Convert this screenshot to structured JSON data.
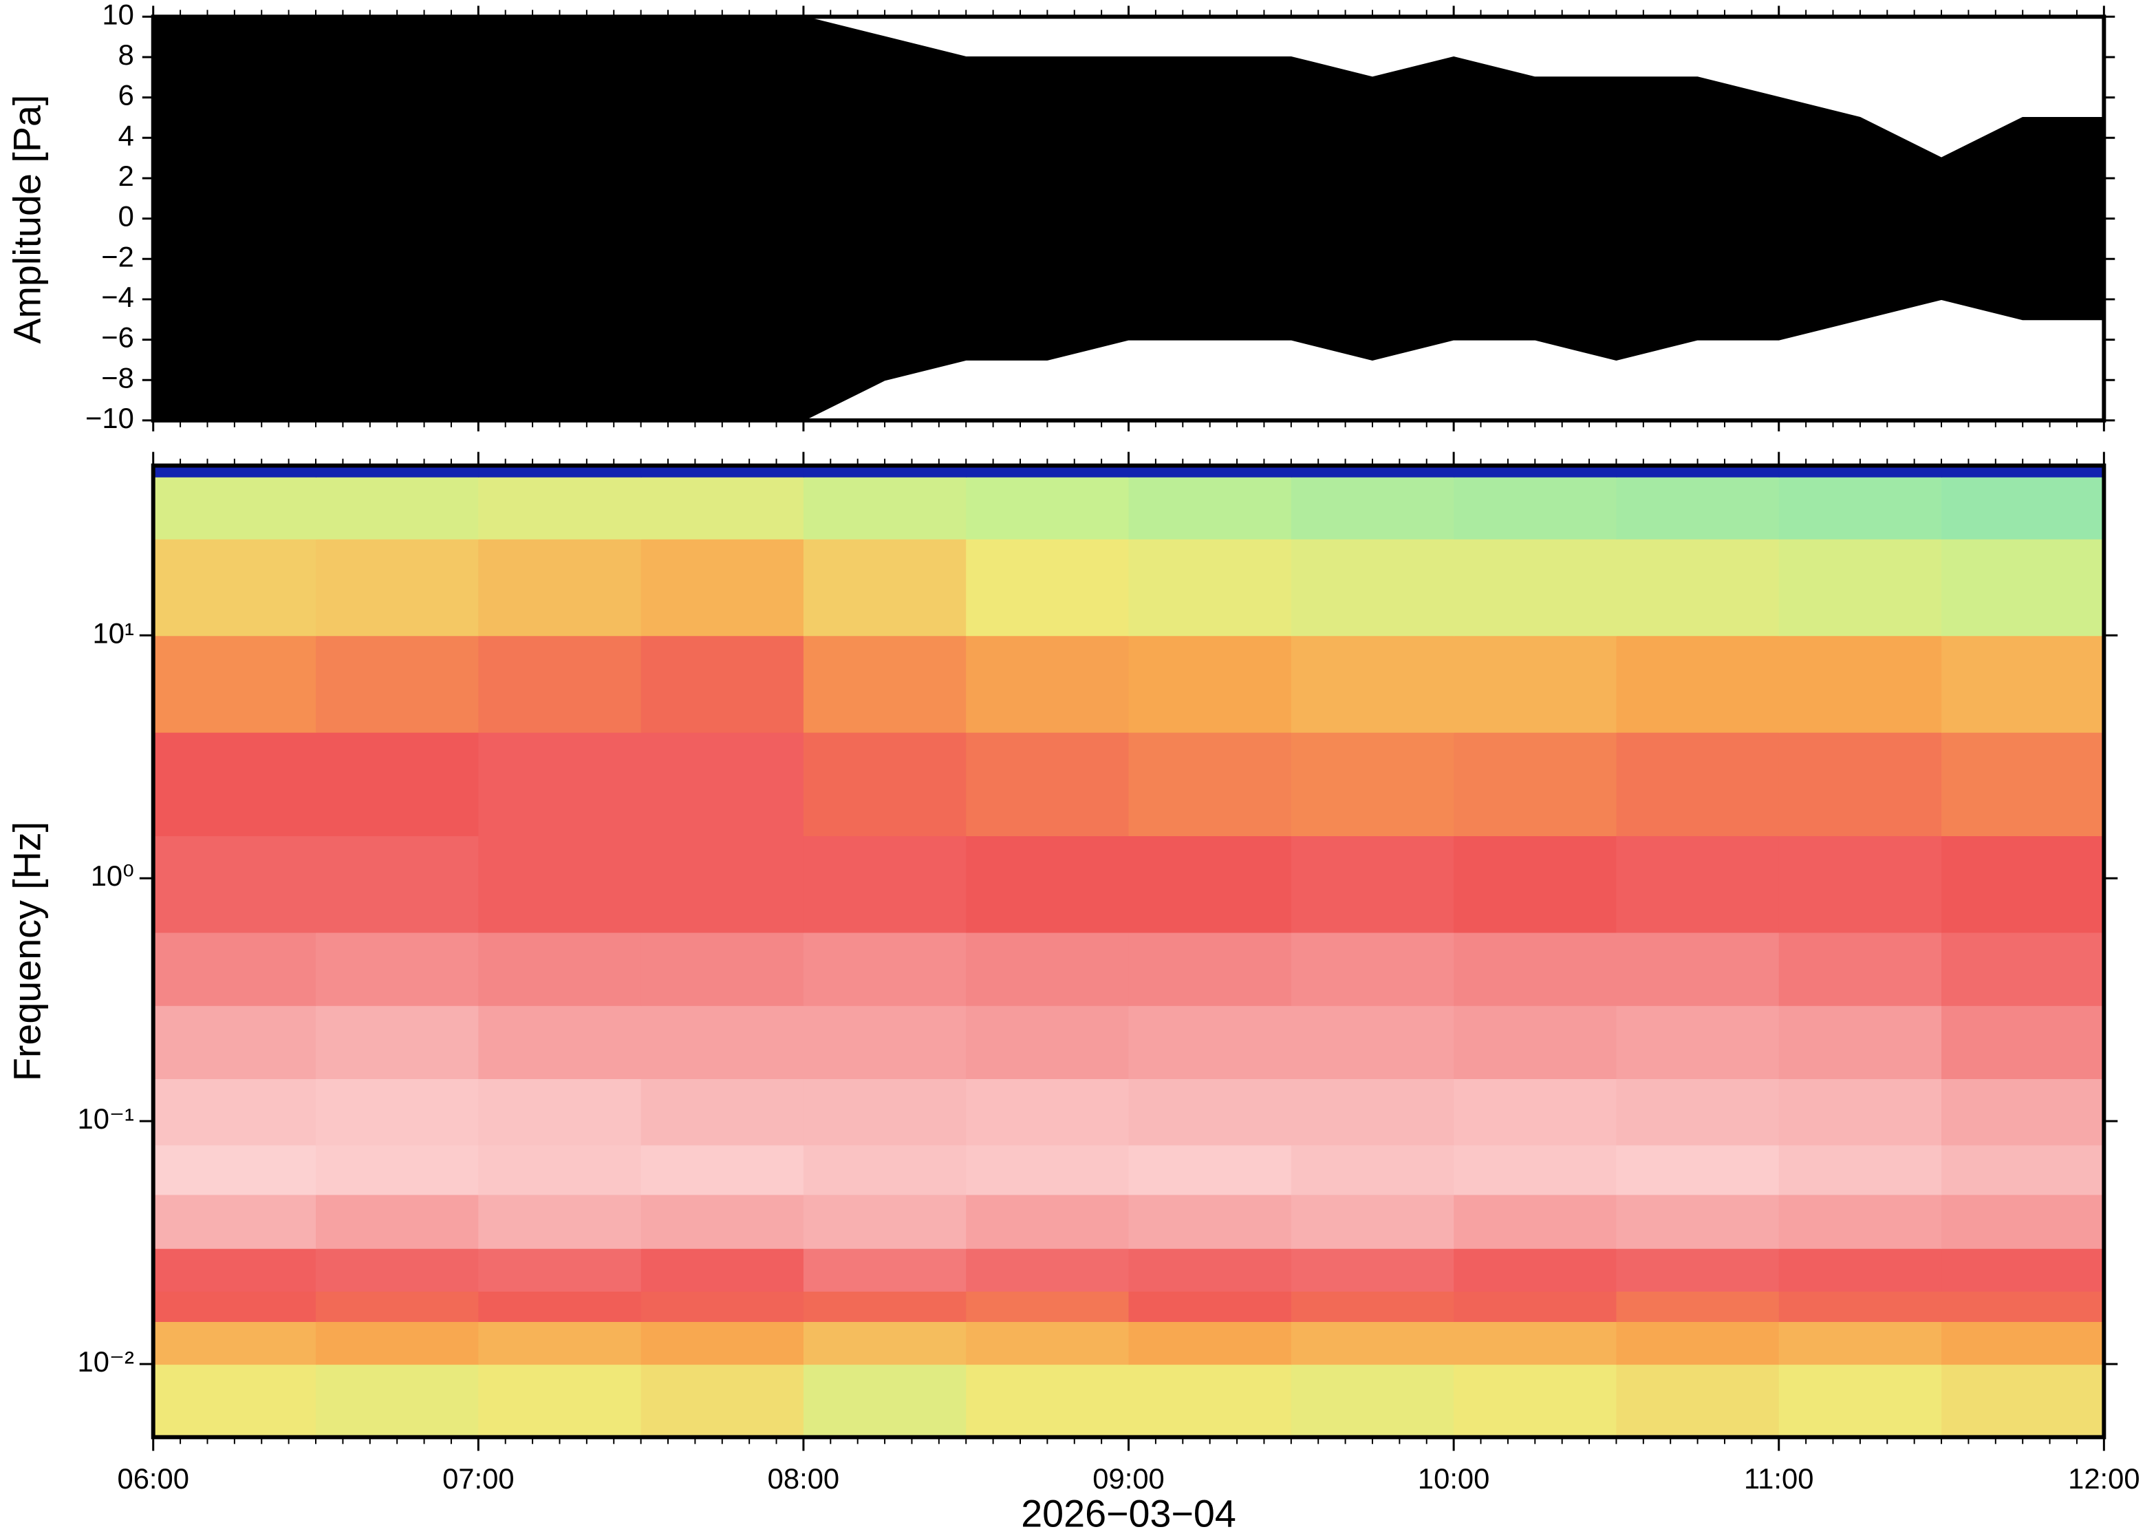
{
  "chart_data": [
    {
      "type": "waveform",
      "ylabel": "Amplitude [Pa]",
      "x": [
        6,
        6.25,
        6.5,
        6.75,
        7,
        7.25,
        7.5,
        7.75,
        8,
        8.25,
        8.5,
        8.75,
        9,
        9.25,
        9.5,
        9.75,
        10,
        10.25,
        10.5,
        10.75,
        11,
        11.25,
        11.5,
        11.75,
        12
      ],
      "series": [
        {
          "color": "#000000",
          "values": [
            10,
            10,
            10,
            10,
            10,
            10,
            10,
            10,
            10,
            9,
            8,
            8,
            8,
            8,
            8,
            7,
            8,
            7,
            7,
            7,
            6,
            5,
            3,
            5,
            5
          ]
        },
        {
          "color": "#000000",
          "values": [
            -10,
            -10,
            -10,
            -10,
            -10,
            -10,
            -10,
            -10,
            -10,
            -8,
            -7,
            -7,
            -6,
            -6,
            -6,
            -7,
            -6,
            -6,
            -7,
            -6,
            -6,
            -5,
            -4,
            -5,
            -5
          ]
        }
      ],
      "xlim": [
        6,
        12
      ],
      "ylim": [
        -10,
        10
      ],
      "yticks": [
        {
          "value": -10,
          "label": "−10"
        },
        {
          "value": -8,
          "label": "−8"
        },
        {
          "value": -6,
          "label": "−6"
        },
        {
          "value": -4,
          "label": "−4"
        },
        {
          "value": -2,
          "label": "−2"
        },
        0,
        2,
        4,
        6,
        8,
        10
      ]
    },
    {
      "type": "heatmap",
      "ylabel": "Frequency [Hz]",
      "xlabel": "2026−03−04",
      "log_y": true,
      "x": [
        6,
        6.5,
        7,
        7.5,
        8,
        8.5,
        9,
        9.5,
        10,
        10.5,
        11,
        11.5,
        12
      ],
      "y": [
        0.005,
        0.01,
        0.015,
        0.02,
        0.03,
        0.05,
        0.08,
        0.15,
        0.3,
        0.6,
        1.5,
        4,
        10,
        25,
        45,
        50
      ],
      "values": [
        [
          0.5,
          0.48,
          0.5,
          0.52,
          0.46,
          0.5,
          0.5,
          0.48,
          0.5,
          0.52,
          0.5,
          0.52
        ],
        [
          0.6,
          0.62,
          0.6,
          0.62,
          0.58,
          0.6,
          0.62,
          0.6,
          0.6,
          0.62,
          0.6,
          0.62
        ],
        [
          0.74,
          0.72,
          0.74,
          0.73,
          0.72,
          0.7,
          0.74,
          0.72,
          0.73,
          0.7,
          0.72,
          0.72
        ],
        [
          0.76,
          0.77,
          0.78,
          0.76,
          0.8,
          0.78,
          0.77,
          0.78,
          0.76,
          0.77,
          0.76,
          0.76
        ],
        [
          0.88,
          0.86,
          0.88,
          0.87,
          0.88,
          0.86,
          0.87,
          0.88,
          0.86,
          0.87,
          0.86,
          0.85
        ],
        [
          0.95,
          0.94,
          0.93,
          0.94,
          0.92,
          0.93,
          0.94,
          0.92,
          0.93,
          0.94,
          0.92,
          0.9
        ],
        [
          0.92,
          0.93,
          0.92,
          0.9,
          0.9,
          0.91,
          0.9,
          0.9,
          0.91,
          0.9,
          0.89,
          0.87
        ],
        [
          0.87,
          0.88,
          0.86,
          0.86,
          0.86,
          0.85,
          0.86,
          0.86,
          0.85,
          0.86,
          0.85,
          0.82
        ],
        [
          0.82,
          0.83,
          0.82,
          0.82,
          0.83,
          0.82,
          0.82,
          0.83,
          0.82,
          0.82,
          0.8,
          0.78
        ],
        [
          0.77,
          0.77,
          0.76,
          0.76,
          0.76,
          0.75,
          0.75,
          0.76,
          0.75,
          0.76,
          0.76,
          0.75
        ],
        [
          0.75,
          0.75,
          0.76,
          0.76,
          0.72,
          0.7,
          0.68,
          0.67,
          0.68,
          0.7,
          0.7,
          0.68
        ],
        [
          0.66,
          0.68,
          0.7,
          0.72,
          0.66,
          0.63,
          0.62,
          0.6,
          0.6,
          0.62,
          0.62,
          0.6
        ],
        [
          0.55,
          0.56,
          0.58,
          0.6,
          0.55,
          0.5,
          0.48,
          0.46,
          0.46,
          0.46,
          0.44,
          0.42
        ],
        [
          0.44,
          0.44,
          0.46,
          0.46,
          0.42,
          0.4,
          0.38,
          0.36,
          0.35,
          0.34,
          0.33,
          0.32
        ],
        [
          0.05,
          0.05,
          0.05,
          0.05,
          0.05,
          0.05,
          0.05,
          0.05,
          0.05,
          0.05,
          0.05,
          0.05
        ]
      ],
      "colormap": [
        {
          "value": 0,
          "color": "#0a0a60"
        },
        {
          "value": 0.1,
          "color": "#1a3cff"
        },
        {
          "value": 0.25,
          "color": "#70e0c0"
        },
        {
          "value": 0.4,
          "color": "#c8f090"
        },
        {
          "value": 0.5,
          "color": "#f0e878"
        },
        {
          "value": 0.62,
          "color": "#f8a850"
        },
        {
          "value": 0.75,
          "color": "#f05858"
        },
        {
          "value": 0.88,
          "color": "#f8b0b0"
        },
        {
          "value": 1,
          "color": "#ffe8e8"
        }
      ],
      "xlim": [
        6,
        12
      ],
      "ylim": [
        0.005,
        50
      ],
      "xticks": [
        {
          "value": 6,
          "label": "06:00"
        },
        {
          "value": 7,
          "label": "07:00"
        },
        {
          "value": 8,
          "label": "08:00"
        },
        {
          "value": 9,
          "label": "09:00"
        },
        {
          "value": 10,
          "label": "10:00"
        },
        {
          "value": 11,
          "label": "11:00"
        },
        {
          "value": 12,
          "label": "12:00"
        }
      ],
      "yticks": [
        {
          "value": 0.01,
          "label": "10⁻²"
        },
        {
          "value": 0.1,
          "label": "10⁻¹"
        },
        {
          "value": 1,
          "label": "10⁰"
        },
        {
          "value": 10,
          "label": "10¹"
        }
      ]
    }
  ]
}
